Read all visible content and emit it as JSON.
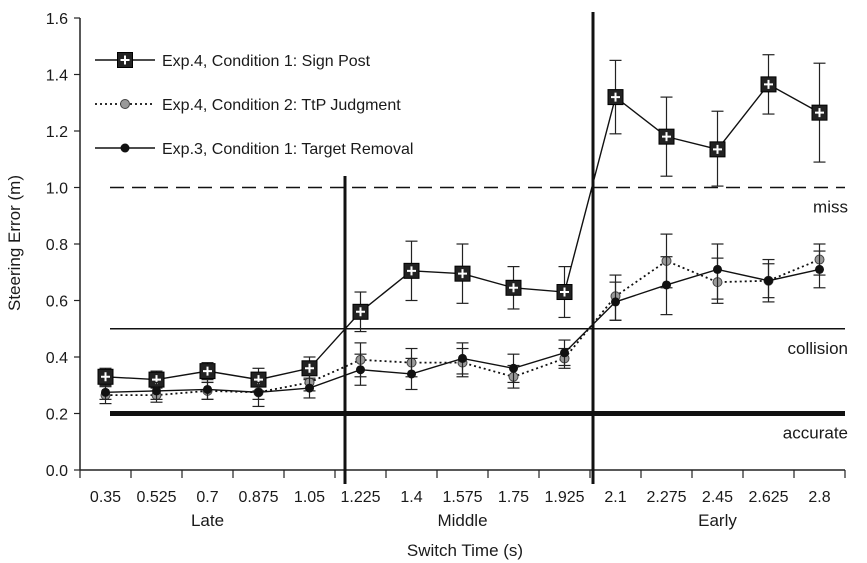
{
  "chart_data": {
    "type": "line",
    "title": "",
    "xlabel": "Switch Time (s)",
    "ylabel": "Steering Error (m)",
    "ylim": [
      0,
      1.6
    ],
    "yticks": [
      "0.0",
      "0.2",
      "0.4",
      "0.6",
      "0.8",
      "1.0",
      "1.2",
      "1.4",
      "1.6"
    ],
    "categories": [
      "0.35",
      "0.525",
      "0.7",
      "0.875",
      "1.05",
      "1.225",
      "1.4",
      "1.575",
      "1.75",
      "1.925",
      "2.1",
      "2.275",
      "2.45",
      "2.625",
      "2.8"
    ],
    "groups": [
      {
        "label": "Late",
        "from": 0,
        "to": 4
      },
      {
        "label": "Middle",
        "from": 5,
        "to": 9
      },
      {
        "label": "Early",
        "from": 10,
        "to": 14
      }
    ],
    "series": [
      {
        "name": "Exp.4, Condition 1: Sign Post",
        "marker": "square-plus",
        "line": "solid",
        "values": [
          0.33,
          0.32,
          0.35,
          0.32,
          0.36,
          0.56,
          0.705,
          0.695,
          0.645,
          0.63,
          1.32,
          1.18,
          1.135,
          1.365,
          1.265
        ],
        "err_low": [
          0.3,
          0.28,
          0.31,
          0.28,
          0.32,
          0.49,
          0.6,
          0.59,
          0.57,
          0.54,
          1.19,
          1.04,
          1.005,
          1.26,
          1.09
        ],
        "err_high": [
          0.36,
          0.35,
          0.38,
          0.36,
          0.4,
          0.63,
          0.81,
          0.8,
          0.72,
          0.72,
          1.45,
          1.32,
          1.27,
          1.47,
          1.44
        ]
      },
      {
        "name": "Exp.4, Condition 2: TtP Judgment",
        "marker": "gray-circle",
        "line": "dotted",
        "values": [
          0.265,
          0.265,
          0.28,
          0.275,
          0.31,
          0.39,
          0.38,
          0.38,
          0.33,
          0.395,
          0.615,
          0.74,
          0.665,
          0.67,
          0.745
        ],
        "err_low": [
          0.235,
          0.24,
          0.25,
          0.25,
          0.28,
          0.33,
          0.33,
          0.33,
          0.29,
          0.36,
          0.53,
          0.645,
          0.59,
          0.61,
          0.69
        ],
        "err_high": [
          0.295,
          0.29,
          0.31,
          0.3,
          0.34,
          0.45,
          0.43,
          0.43,
          0.37,
          0.43,
          0.69,
          0.835,
          0.75,
          0.73,
          0.8
        ]
      },
      {
        "name": "Exp.3, Condition 1: Target Removal",
        "marker": "black-circle",
        "line": "solid",
        "values": [
          0.275,
          0.28,
          0.285,
          0.275,
          0.29,
          0.355,
          0.34,
          0.395,
          0.36,
          0.415,
          0.595,
          0.655,
          0.71,
          0.67,
          0.71
        ],
        "err_low": [
          0.25,
          0.25,
          0.25,
          0.225,
          0.255,
          0.3,
          0.285,
          0.34,
          0.31,
          0.37,
          0.53,
          0.55,
          0.605,
          0.595,
          0.645
        ],
        "err_high": [
          0.3,
          0.31,
          0.32,
          0.31,
          0.325,
          0.41,
          0.395,
          0.45,
          0.41,
          0.46,
          0.665,
          0.755,
          0.8,
          0.745,
          0.775
        ]
      }
    ],
    "reference_lines": [
      {
        "label": "miss",
        "y": 1.0,
        "style": "dashed"
      },
      {
        "label": "collision",
        "y": 0.5,
        "style": "solid"
      },
      {
        "label": "accurate",
        "y": 0.2,
        "style": "bold"
      }
    ],
    "separators_after_index": [
      4,
      9
    ],
    "grid": false,
    "legend_position": "top-left"
  }
}
